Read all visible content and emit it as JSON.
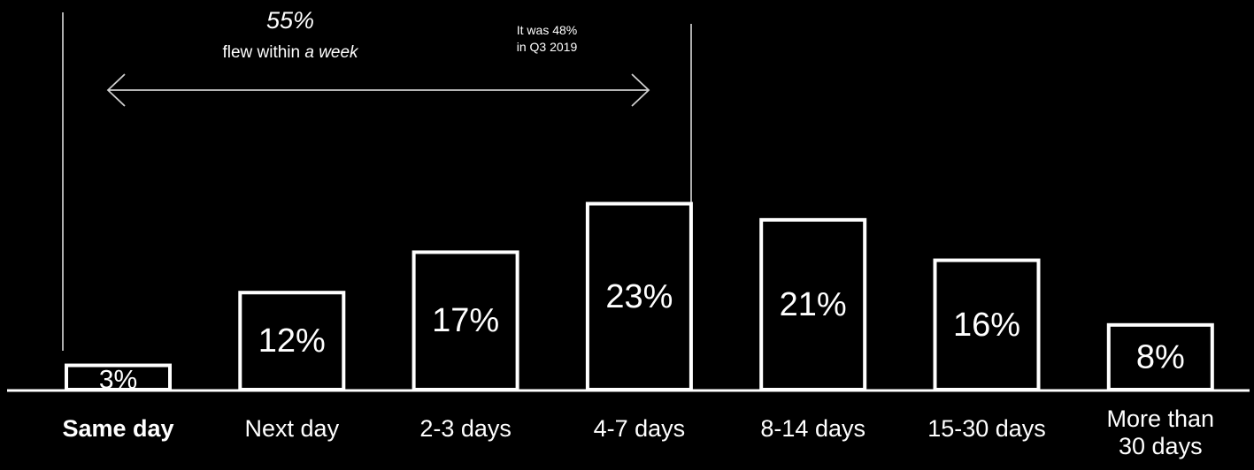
{
  "chart_data": {
    "type": "bar",
    "categories": [
      "Same day",
      "Next day",
      "2-3 days",
      "4-7 days",
      "8-14 days",
      "15-30 days",
      "More than\n30 days"
    ],
    "values": [
      3,
      12,
      17,
      23,
      21,
      16,
      8
    ],
    "value_labels": [
      "3%",
      "12%",
      "17%",
      "23%",
      "21%",
      "16%",
      "8%"
    ],
    "title": "",
    "xlabel": "",
    "ylabel": "",
    "ylim": [
      0,
      25
    ],
    "grid": false,
    "legend": "none",
    "bold_category_index": 0,
    "colors": {
      "background": "#000000",
      "bar_outline": "#ffffff",
      "bar_fill": "#000000",
      "text": "#ffffff"
    }
  },
  "annotations": {
    "headline_value": "55%",
    "headline_text_prefix": "flew within ",
    "headline_text_emphasis": "a week",
    "comparison_line1": "It was 48%",
    "comparison_line2": "in Q3 2019"
  }
}
